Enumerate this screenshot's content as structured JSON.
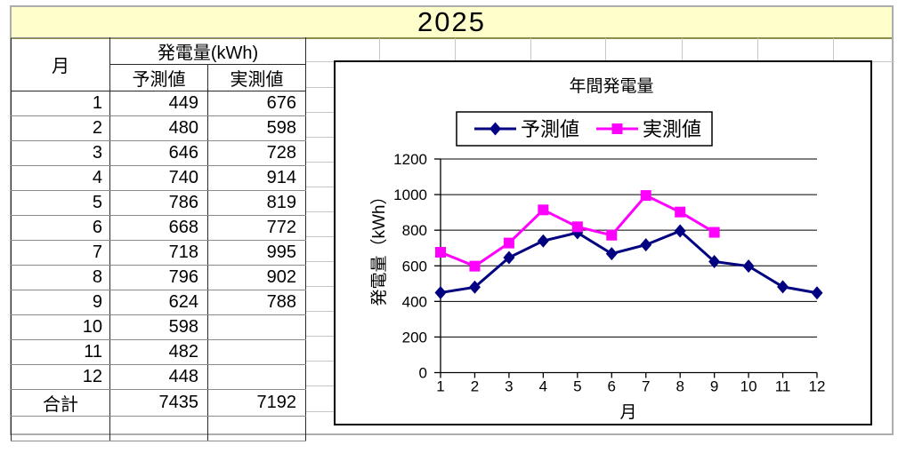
{
  "sheet": {
    "title": "2025",
    "title_bg": "#FFFFCC"
  },
  "table": {
    "month_header": "月",
    "group_header": "発電量(kWh)",
    "col_headers": [
      "予測値",
      "実測値"
    ],
    "rows": [
      {
        "month": 1,
        "forecast": 449,
        "actual": 676
      },
      {
        "month": 2,
        "forecast": 480,
        "actual": 598
      },
      {
        "month": 3,
        "forecast": 646,
        "actual": 728
      },
      {
        "month": 4,
        "forecast": 740,
        "actual": 914
      },
      {
        "month": 5,
        "forecast": 786,
        "actual": 819
      },
      {
        "month": 6,
        "forecast": 668,
        "actual": 772
      },
      {
        "month": 7,
        "forecast": 718,
        "actual": 995
      },
      {
        "month": 8,
        "forecast": 796,
        "actual": 902
      },
      {
        "month": 9,
        "forecast": 624,
        "actual": 788
      },
      {
        "month": 10,
        "forecast": 598,
        "actual": null
      },
      {
        "month": 11,
        "forecast": 482,
        "actual": null
      },
      {
        "month": 12,
        "forecast": 448,
        "actual": null
      }
    ],
    "total_row": {
      "label": "合計",
      "forecast": 7435,
      "actual": 7192
    }
  },
  "colors": {
    "title_band": "#FFFFCC",
    "forecast_series": "#000080",
    "actual_series": "#FF00FF"
  },
  "chart_data": {
    "type": "line",
    "title": "年間発電量",
    "xlabel": "月",
    "ylabel": "発電量（kWh）",
    "categories": [
      1,
      2,
      3,
      4,
      5,
      6,
      7,
      8,
      9,
      10,
      11,
      12
    ],
    "ylim": [
      0,
      1200
    ],
    "yticks": [
      0,
      200,
      400,
      600,
      800,
      1000,
      1200
    ],
    "grid": true,
    "legend_position": "top",
    "series": [
      {
        "name": "予測値",
        "key": "forecast",
        "color": "#000080",
        "marker": "diamond",
        "values": [
          449,
          480,
          646,
          740,
          786,
          668,
          718,
          796,
          624,
          598,
          482,
          448
        ]
      },
      {
        "name": "実測値",
        "key": "actual",
        "color": "#FF00FF",
        "marker": "square",
        "values": [
          676,
          598,
          728,
          914,
          819,
          772,
          995,
          902,
          788,
          null,
          null,
          null
        ]
      }
    ]
  }
}
